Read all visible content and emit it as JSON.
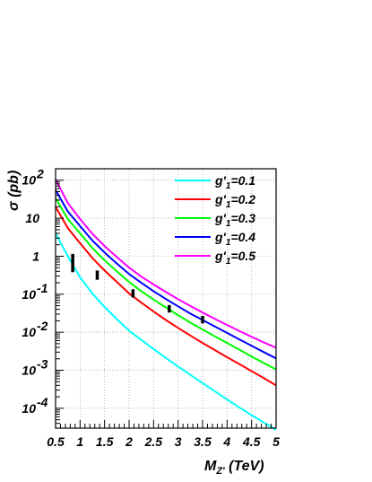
{
  "chart_data": {
    "type": "line",
    "xlabel": "M_{Z'} (TeV)",
    "ylabel": "σ (pb)",
    "xlim": [
      0.5,
      5
    ],
    "ylim": [
      3e-05,
      200
    ],
    "yscale": "log",
    "grid": true,
    "legend_position": "top-right",
    "x_ticks": [
      0.5,
      1,
      1.5,
      2,
      2.5,
      3,
      3.5,
      4,
      4.5,
      5
    ],
    "x_tick_labels": [
      "0.5",
      "1",
      "1.5",
      "2",
      "2.5",
      "3",
      "3.5",
      "4",
      "4.5",
      "5"
    ],
    "y_ticks": [
      {
        "value": 100,
        "base": "10",
        "exp": "2"
      },
      {
        "value": 10,
        "base": "10",
        "exp": ""
      },
      {
        "value": 1,
        "base": "1",
        "exp": ""
      },
      {
        "value": 0.1,
        "base": "10",
        "exp": "-1"
      },
      {
        "value": 0.01,
        "base": "10",
        "exp": "-2"
      },
      {
        "value": 0.001,
        "base": "10",
        "exp": "-3"
      },
      {
        "value": 0.0001,
        "base": "10",
        "exp": "-4"
      }
    ],
    "x": [
      0.5,
      0.75,
      1.0,
      1.25,
      1.5,
      1.75,
      2.0,
      2.25,
      2.5,
      2.75,
      3.0,
      3.25,
      3.5,
      3.75,
      4.0,
      4.25,
      4.5,
      4.75,
      5.0
    ],
    "series": [
      {
        "name": "g'_1=0.1",
        "color": "#00ffff",
        "values": [
          4.0,
          1.0,
          0.28,
          0.105,
          0.046,
          0.022,
          0.011,
          0.0063,
          0.0036,
          0.0021,
          0.00125,
          0.00076,
          0.00046,
          0.00028,
          0.00017,
          0.000105,
          6.6e-05,
          4.2e-05,
          2.7e-05
        ]
      },
      {
        "name": "g'_1=0.2",
        "color": "#ff0000",
        "values": [
          20.0,
          5.5,
          2.2,
          0.9,
          0.42,
          0.21,
          0.105,
          0.06,
          0.035,
          0.021,
          0.013,
          0.0082,
          0.0052,
          0.0034,
          0.0022,
          0.00145,
          0.00095,
          0.00062,
          0.0004
        ]
      },
      {
        "name": "g'_1=0.3",
        "color": "#00ff00",
        "values": [
          34.0,
          9.5,
          4.0,
          1.65,
          0.78,
          0.4,
          0.21,
          0.12,
          0.072,
          0.045,
          0.028,
          0.018,
          0.0118,
          0.0078,
          0.0052,
          0.0035,
          0.0023,
          0.00155,
          0.00105
        ]
      },
      {
        "name": "g'_1=0.4",
        "color": "#0000ff",
        "values": [
          55.0,
          15.0,
          6.2,
          2.6,
          1.25,
          0.64,
          0.34,
          0.2,
          0.12,
          0.075,
          0.048,
          0.031,
          0.021,
          0.0142,
          0.0096,
          0.0065,
          0.0044,
          0.003,
          0.00205
        ]
      },
      {
        "name": "g'_1=0.5",
        "color": "#ff00ff",
        "values": [
          105.0,
          25.0,
          9.5,
          3.9,
          1.85,
          0.95,
          0.5,
          0.29,
          0.18,
          0.115,
          0.074,
          0.049,
          0.033,
          0.0225,
          0.0155,
          0.0108,
          0.0076,
          0.0054,
          0.0039
        ]
      }
    ],
    "markers": [
      {
        "x": 0.85,
        "y_low": 0.38,
        "y_high": 1.15
      },
      {
        "x": 1.35,
        "y_low": 0.24,
        "y_high": 0.42
      },
      {
        "x": 2.08,
        "y_low": 0.082,
        "y_high": 0.135
      },
      {
        "x": 2.82,
        "y_low": 0.033,
        "y_high": 0.052
      },
      {
        "x": 3.5,
        "y_low": 0.017,
        "y_high": 0.027
      }
    ]
  },
  "legend": {
    "entries": [
      {
        "prefix": "g'",
        "sub": "1",
        "suffix": "=0.1"
      },
      {
        "prefix": "g'",
        "sub": "1",
        "suffix": "=0.2"
      },
      {
        "prefix": "g'",
        "sub": "1",
        "suffix": "=0.3"
      },
      {
        "prefix": "g'",
        "sub": "1",
        "suffix": "=0.4"
      },
      {
        "prefix": "g'",
        "sub": "1",
        "suffix": "=0.5"
      }
    ]
  },
  "axes": {
    "ylabel_symbol": "σ",
    "ylabel_unit": " (pb)",
    "xlabel_main": "M",
    "xlabel_sub": "Z'",
    "xlabel_unit": " (TeV)"
  }
}
